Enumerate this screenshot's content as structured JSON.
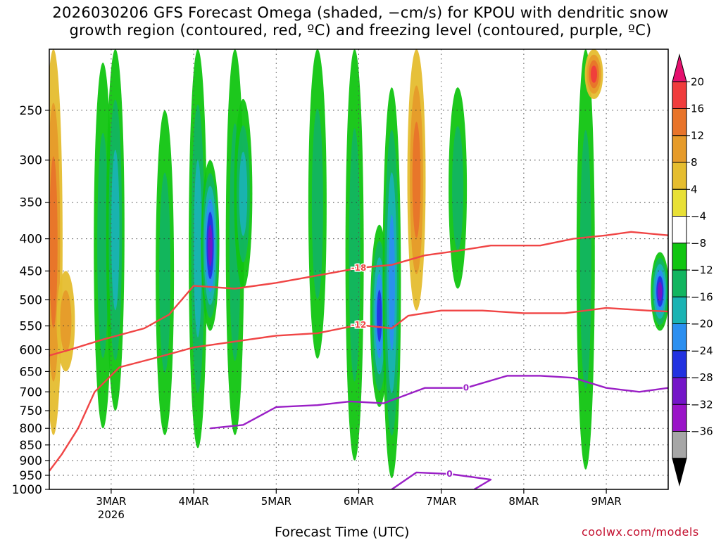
{
  "title_line1": "2026030206 GFS Forecast Omega (shaded, −cm/s) for KPOU with dendritic snow",
  "title_line2": "growth region (contoured, red, ºC) and freezing level (contoured, purple, ºC)",
  "x_title": "Forecast Time (UTC)",
  "credit": "coolwx.com/models",
  "chart_data": {
    "type": "heatmap",
    "title": "2026030206 GFS Forecast Omega (shaded, −cm/s) for KPOU with dendritic snow growth region (contoured, red, ºC) and freezing level (contoured, purple, ºC)",
    "xlabel": "Forecast Time (UTC)",
    "ylabel": "",
    "x_range_days": [
      "2026-03-02 06Z",
      "2026-03-09 18Z"
    ],
    "y_range_hPa": [
      1000,
      200
    ],
    "y_ticks": [
      250,
      300,
      350,
      400,
      450,
      500,
      550,
      600,
      650,
      700,
      750,
      800,
      850,
      900,
      950,
      1000
    ],
    "x_ticks": [
      {
        "label": "3MAR",
        "sublabel": "2026",
        "day": 3
      },
      {
        "label": "4MAR",
        "sublabel": "",
        "day": 4
      },
      {
        "label": "5MAR",
        "sublabel": "",
        "day": 5
      },
      {
        "label": "6MAR",
        "sublabel": "",
        "day": 6
      },
      {
        "label": "7MAR",
        "sublabel": "",
        "day": 7
      },
      {
        "label": "8MAR",
        "sublabel": "",
        "day": 8
      },
      {
        "label": "9MAR",
        "sublabel": "",
        "day": 9
      }
    ],
    "colorbar": {
      "labels": [
        "20",
        "16",
        "12",
        "8",
        "4",
        "−4",
        "−8",
        "−12",
        "−16",
        "−20",
        "−24",
        "−28",
        "−32",
        "−36"
      ],
      "colors": [
        "#e5106e",
        "#f03c3c",
        "#e8742a",
        "#e69b2a",
        "#e5bd2f",
        "#e8e036",
        "#ffffff",
        "#11c511",
        "#12b560",
        "#1ab3b3",
        "#2b8ff0",
        "#2232e0",
        "#7415c8",
        "#9a14c8",
        "#a6a6a6",
        "#000000"
      ]
    },
    "omega_features": [
      {
        "day": 2.3,
        "p_top": 200,
        "p_bot": 820,
        "value": 14
      },
      {
        "day": 2.45,
        "p_top": 450,
        "p_bot": 650,
        "value": 8
      },
      {
        "day": 2.9,
        "p_top": 210,
        "p_bot": 800,
        "value": -8
      },
      {
        "day": 3.05,
        "p_top": 200,
        "p_bot": 750,
        "value": -12
      },
      {
        "day": 3.65,
        "p_top": 250,
        "p_bot": 820,
        "value": -8
      },
      {
        "day": 4.05,
        "p_top": 200,
        "p_bot": 860,
        "value": -12
      },
      {
        "day": 4.2,
        "p_top": 300,
        "p_bot": 560,
        "value": -24
      },
      {
        "day": 4.5,
        "p_top": 200,
        "p_bot": 820,
        "value": -8
      },
      {
        "day": 4.6,
        "p_top": 240,
        "p_bot": 480,
        "value": -14
      },
      {
        "day": 5.5,
        "p_top": 200,
        "p_bot": 620,
        "value": -8
      },
      {
        "day": 5.95,
        "p_top": 200,
        "p_bot": 900,
        "value": -10
      },
      {
        "day": 6.25,
        "p_top": 380,
        "p_bot": 740,
        "value": -20
      },
      {
        "day": 6.4,
        "p_top": 230,
        "p_bot": 960,
        "value": -16
      },
      {
        "day": 6.7,
        "p_top": 200,
        "p_bot": 520,
        "value": 12
      },
      {
        "day": 7.2,
        "p_top": 230,
        "p_bot": 480,
        "value": -8
      },
      {
        "day": 8.75,
        "p_top": 200,
        "p_bot": 930,
        "value": -8
      },
      {
        "day": 8.85,
        "p_top": 200,
        "p_bot": 240,
        "value": 16
      },
      {
        "day": 9.65,
        "p_top": 420,
        "p_bot": 560,
        "value": -26
      }
    ],
    "contours": [
      {
        "name": "-18",
        "color": "#f04545",
        "points": [
          [
            2.25,
            613
          ],
          [
            2.5,
            600
          ],
          [
            2.9,
            578
          ],
          [
            3.4,
            555
          ],
          [
            3.7,
            528
          ],
          [
            4.0,
            475
          ],
          [
            4.5,
            480
          ],
          [
            5.0,
            470
          ],
          [
            5.6,
            455
          ],
          [
            6.0,
            445
          ],
          [
            6.4,
            440
          ],
          [
            6.8,
            425
          ],
          [
            7.2,
            418
          ],
          [
            7.6,
            410
          ],
          [
            8.2,
            410
          ],
          [
            8.6,
            400
          ],
          [
            9.0,
            395
          ],
          [
            9.3,
            390
          ],
          [
            9.75,
            395
          ]
        ]
      },
      {
        "name": "-12",
        "color": "#f04545",
        "points": [
          [
            2.25,
            935
          ],
          [
            2.4,
            880
          ],
          [
            2.6,
            800
          ],
          [
            2.8,
            700
          ],
          [
            3.1,
            640
          ],
          [
            3.5,
            620
          ],
          [
            4.0,
            595
          ],
          [
            4.6,
            580
          ],
          [
            5.0,
            570
          ],
          [
            5.5,
            565
          ],
          [
            6.0,
            548
          ],
          [
            6.4,
            555
          ],
          [
            6.6,
            530
          ],
          [
            7.0,
            520
          ],
          [
            7.5,
            520
          ],
          [
            8.0,
            525
          ],
          [
            8.5,
            525
          ],
          [
            9.0,
            515
          ],
          [
            9.5,
            520
          ],
          [
            9.75,
            522
          ]
        ]
      },
      {
        "name": "0",
        "color": "#9a1fc6",
        "points": [
          [
            4.2,
            800
          ],
          [
            4.6,
            790
          ],
          [
            5.0,
            740
          ],
          [
            5.5,
            735
          ],
          [
            5.9,
            725
          ],
          [
            6.3,
            730
          ],
          [
            6.8,
            690
          ],
          [
            7.3,
            690
          ],
          [
            7.8,
            660
          ],
          [
            8.2,
            660
          ],
          [
            8.6,
            665
          ],
          [
            9.0,
            690
          ],
          [
            9.4,
            700
          ],
          [
            9.75,
            690
          ]
        ]
      },
      {
        "name": "0",
        "color": "#9a1fc6",
        "points": [
          [
            6.4,
            1000
          ],
          [
            6.7,
            940
          ],
          [
            7.1,
            945
          ],
          [
            7.6,
            965
          ],
          [
            7.4,
            1000
          ]
        ]
      }
    ],
    "ground_color": "#a0522d"
  },
  "colors": {
    "dsgz_contour": "#f04545",
    "freezing_contour": "#9a1fc6",
    "terrain": "#a0522d",
    "credit": "#c3102f"
  }
}
